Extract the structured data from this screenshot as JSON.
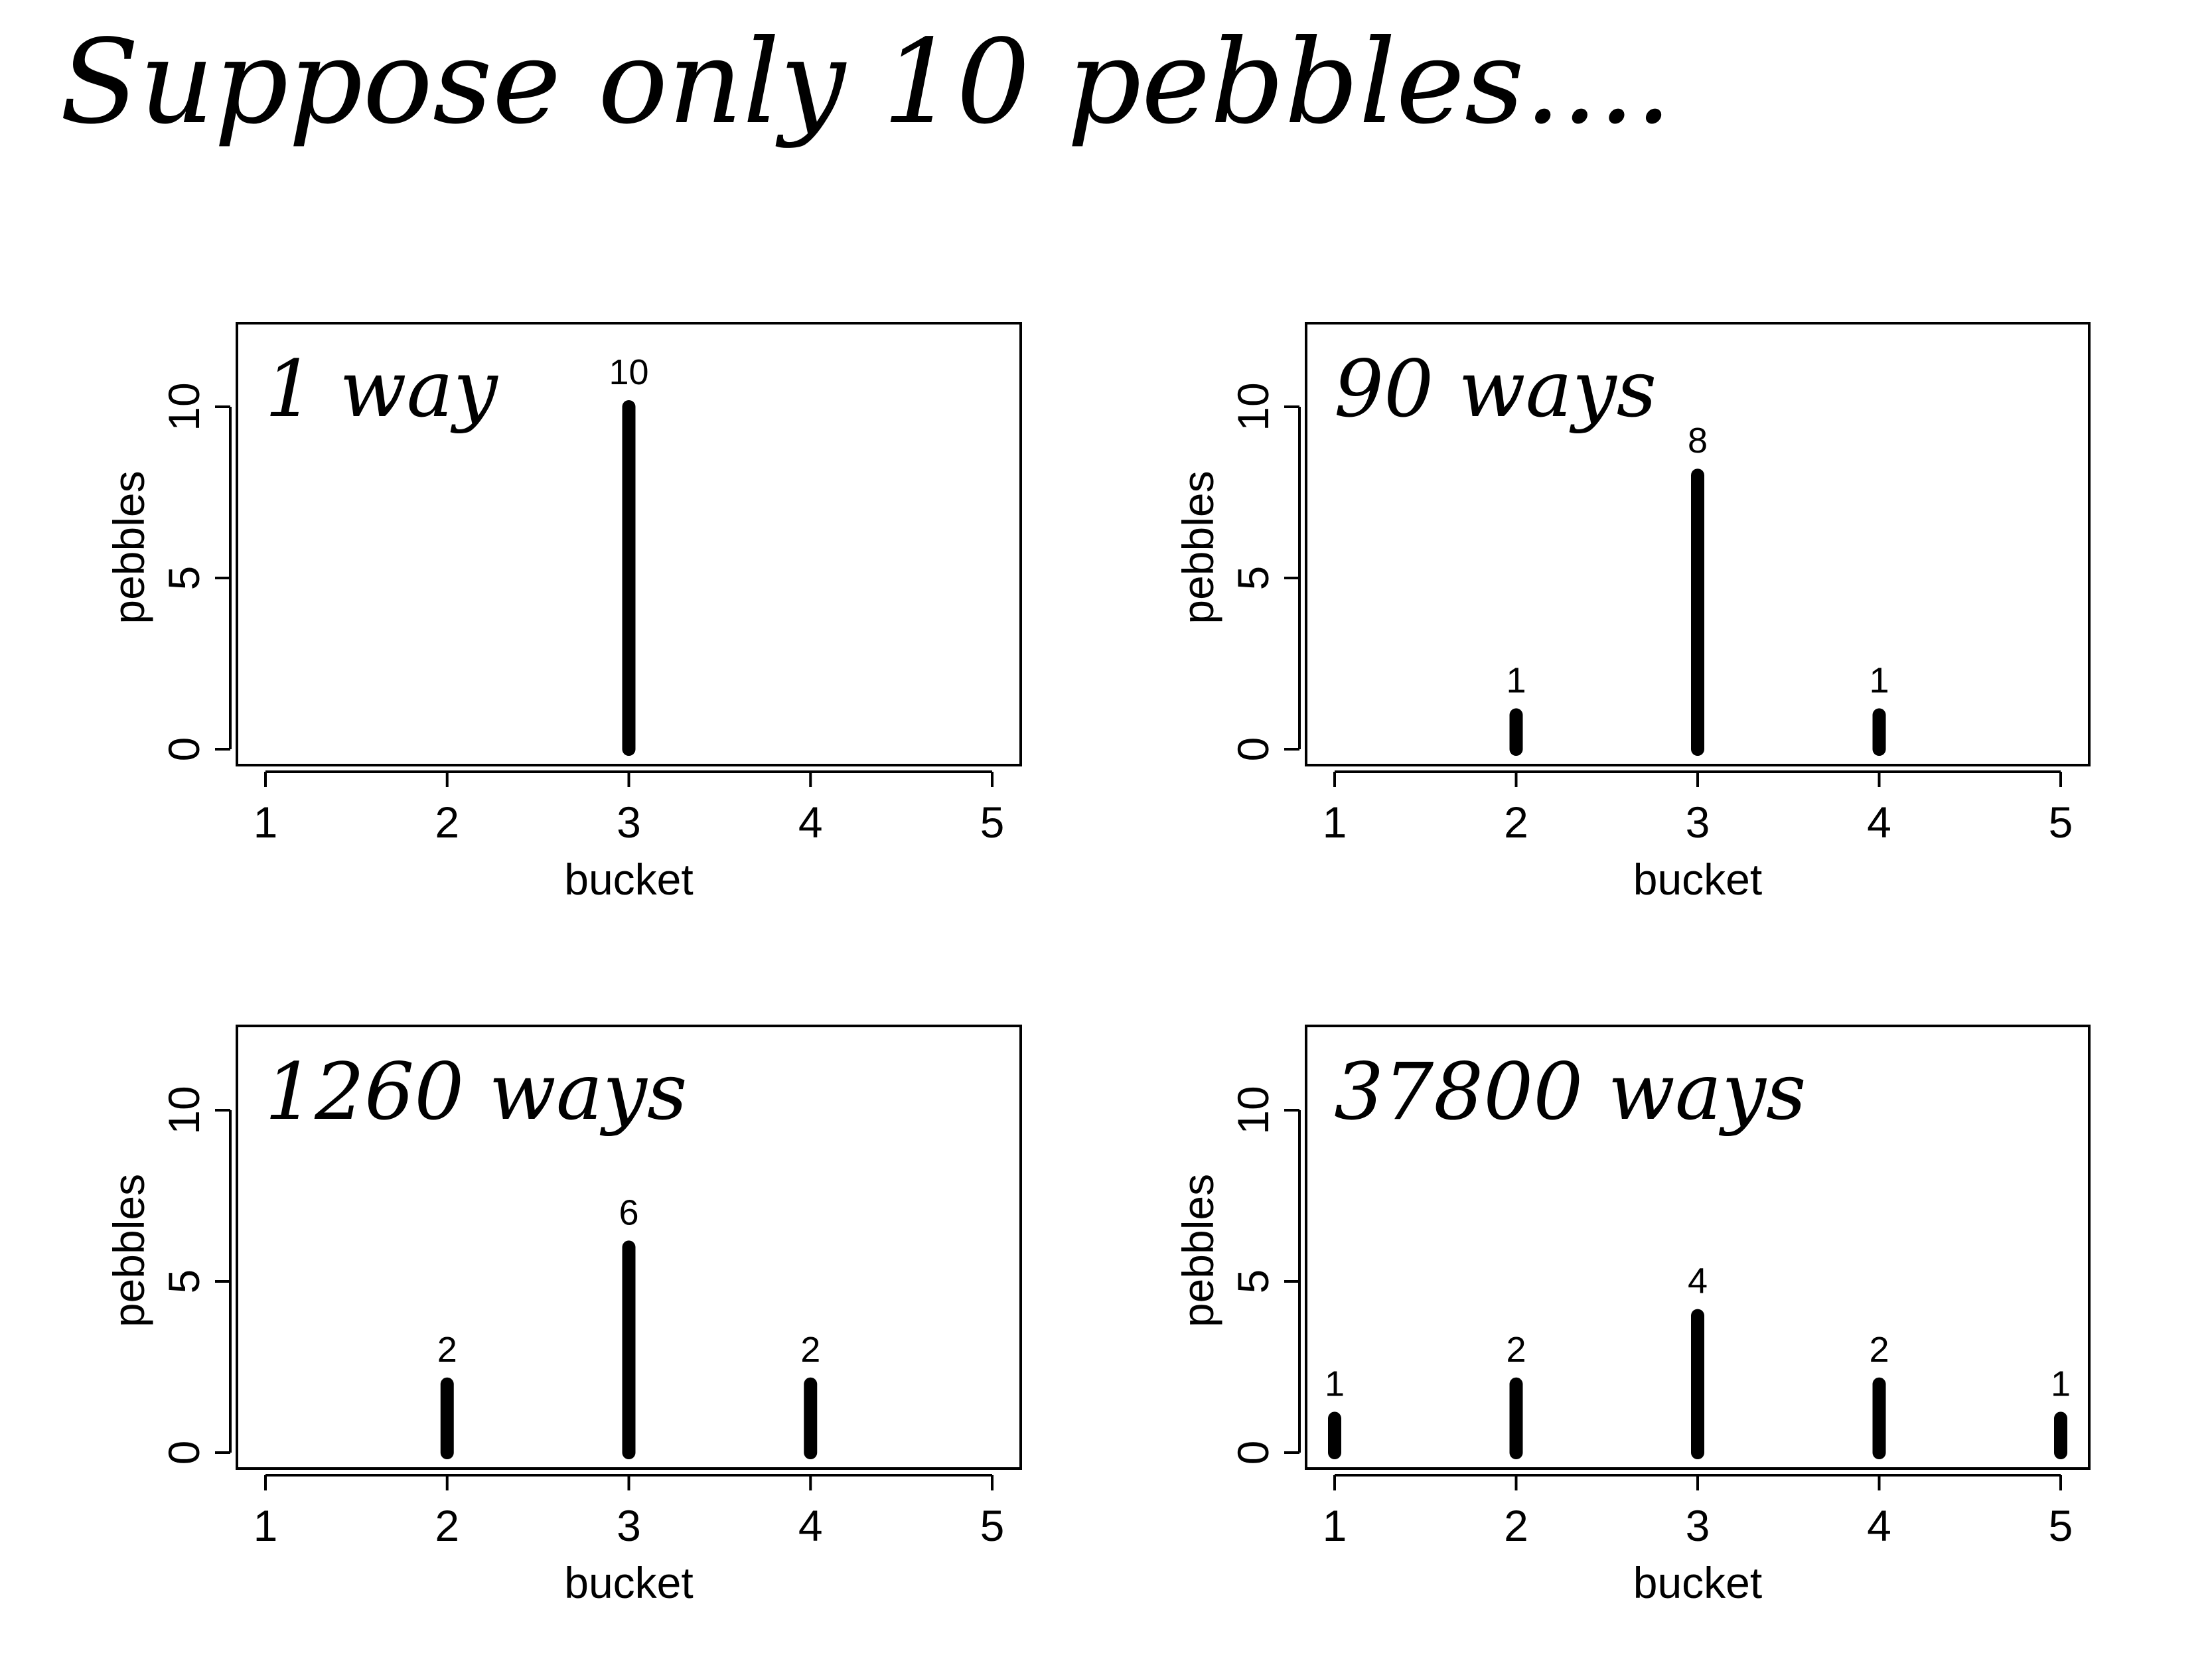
{
  "title": "Suppose only 10 pebbles....",
  "chart_data": [
    {
      "type": "bar",
      "title": "1 way",
      "xlabel": "bucket",
      "ylabel": "pebbles",
      "categories": [
        1,
        2,
        3,
        4,
        5
      ],
      "values": [
        0,
        0,
        10,
        0,
        0
      ],
      "data_labels": [
        "",
        "",
        "10",
        "",
        ""
      ],
      "xlim": [
        1,
        5
      ],
      "ylim": [
        0,
        12
      ],
      "yticks": [
        0,
        5,
        10
      ],
      "grid": false
    },
    {
      "type": "bar",
      "title": "90 ways",
      "xlabel": "bucket",
      "ylabel": "pebbles",
      "categories": [
        1,
        2,
        3,
        4,
        5
      ],
      "values": [
        0,
        1,
        8,
        1,
        0
      ],
      "data_labels": [
        "",
        "1",
        "8",
        "1",
        ""
      ],
      "xlim": [
        1,
        5
      ],
      "ylim": [
        0,
        12
      ],
      "yticks": [
        0,
        5,
        10
      ],
      "grid": false
    },
    {
      "type": "bar",
      "title": "1260 ways",
      "xlabel": "bucket",
      "ylabel": "pebbles",
      "categories": [
        1,
        2,
        3,
        4,
        5
      ],
      "values": [
        0,
        2,
        6,
        2,
        0
      ],
      "data_labels": [
        "",
        "2",
        "6",
        "2",
        ""
      ],
      "xlim": [
        1,
        5
      ],
      "ylim": [
        0,
        12
      ],
      "yticks": [
        0,
        5,
        10
      ],
      "grid": false
    },
    {
      "type": "bar",
      "title": "37800 ways",
      "xlabel": "bucket",
      "ylabel": "pebbles",
      "categories": [
        1,
        2,
        3,
        4,
        5
      ],
      "values": [
        1,
        2,
        4,
        2,
        1
      ],
      "data_labels": [
        "1",
        "2",
        "4",
        "2",
        "1"
      ],
      "xlim": [
        1,
        5
      ],
      "ylim": [
        0,
        12
      ],
      "yticks": [
        0,
        5,
        10
      ],
      "grid": false
    }
  ]
}
